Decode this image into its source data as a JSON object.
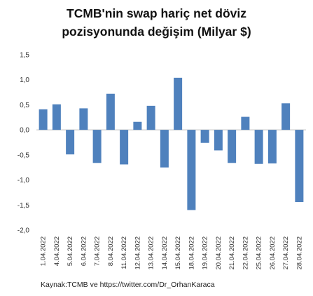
{
  "chart_data": {
    "type": "bar",
    "title_lines": [
      "TCMB'nin swap hariç net döviz",
      "pozisyonunda  değişim (Milyar $)"
    ],
    "categories": [
      "1.04.2022",
      "4.04.2022",
      "5.04.2022",
      "6.04.2022",
      "7.04.2022",
      "8.04.2022",
      "11.04.2022",
      "12.04.2022",
      "13.04.2022",
      "14.04.2022",
      "15.04.2022",
      "18.04.2022",
      "19.04.2022",
      "20.04.2022",
      "21.04.2022",
      "22.04.2022",
      "25.04.2022",
      "26.04.2022",
      "27.04.2022",
      "28.04.2022"
    ],
    "values": [
      0.41,
      0.51,
      -0.49,
      0.43,
      -0.66,
      0.72,
      -0.69,
      0.16,
      0.48,
      -0.75,
      1.04,
      -1.6,
      -0.26,
      -0.41,
      -0.66,
      0.26,
      -0.68,
      -0.67,
      0.53,
      -1.44
    ],
    "yticks": [
      "1,5",
      "1,0",
      "0,5",
      "0,0",
      "-0,5",
      "-1,0",
      "-1,5",
      "-2,0"
    ],
    "ylim": [
      -2.0,
      1.5
    ],
    "bar_color": "#4f81bd",
    "source": "Kaynak:TCMB  ve https://twitter.com/Dr_OrhanKaraca"
  }
}
